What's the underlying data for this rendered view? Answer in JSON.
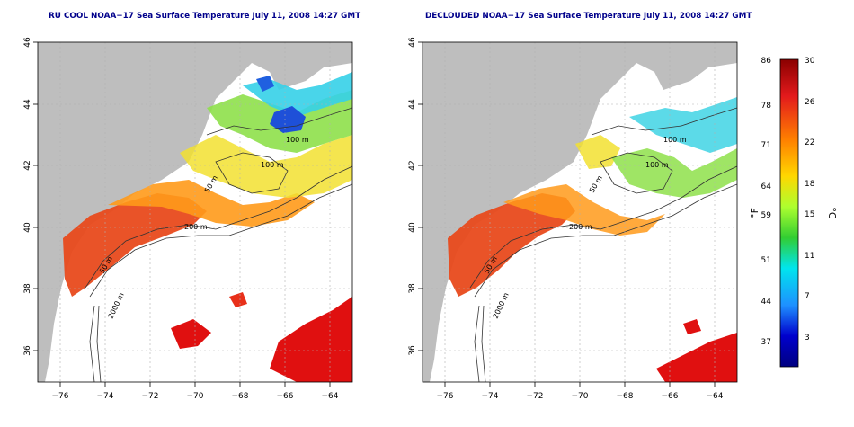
{
  "titles": {
    "left": "RU COOL NOAA−17 Sea Surface Temperature July 11, 2008 14:27 GMT",
    "right": "DECLOUDED NOAA−17 Sea Surface Temperature July 11, 2008 14:27 GMT"
  },
  "axes": {
    "lon_ticks": [
      "−76",
      "−74",
      "−72",
      "−70",
      "−68",
      "−66",
      "−64"
    ],
    "lat_ticks": [
      "36",
      "38",
      "40",
      "42",
      "44",
      "46"
    ],
    "lon_range": [
      -77,
      -63
    ],
    "lat_range": [
      35,
      46
    ]
  },
  "contours": [
    "100 m",
    "100 m",
    "200 m",
    "50 m",
    "2000 m",
    "50 m"
  ],
  "colorbar": {
    "fahrenheit_label": "°F",
    "celsius_label": "°C",
    "fahrenheit_ticks": [
      "86",
      "78",
      "71",
      "64",
      "59",
      "51",
      "44",
      "37"
    ],
    "celsius_ticks": [
      "30",
      "26",
      "22",
      "18",
      "15",
      "11",
      "7",
      "3"
    ],
    "colors": [
      "#8b0000",
      "#e31a1c",
      "#ff7f00",
      "#ffd700",
      "#adff2f",
      "#32cd32",
      "#00e5ee",
      "#1e90ff",
      "#0000cd",
      "#000080"
    ]
  },
  "legend_colors": {
    "land": "#bebebe",
    "ocean_nodata": "#ffffff",
    "grid": "#b0b0b0"
  }
}
